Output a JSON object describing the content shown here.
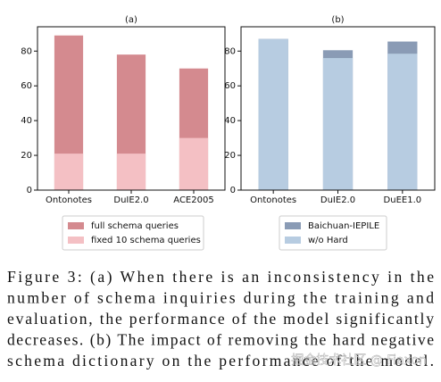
{
  "chart_data": [
    {
      "type": "bar",
      "title": "(a)",
      "categories": [
        "Ontonotes",
        "DuIE2.0",
        "ACE2005"
      ],
      "series": [
        {
          "name": "full schema queries",
          "color": "#d48a8f",
          "values": [
            89,
            78,
            70
          ]
        },
        {
          "name": "fixed 10 schema queries",
          "color": "#f4c0c4",
          "values": [
            21,
            21,
            30
          ]
        }
      ],
      "ylim": [
        0,
        94
      ],
      "yticks": [
        0,
        20,
        40,
        60,
        80
      ],
      "legend": "bottom"
    },
    {
      "type": "bar",
      "title": "(b)",
      "categories": [
        "Ontonotes",
        "DuIE2.0",
        "DuEE1.0"
      ],
      "series": [
        {
          "name": "Baichuan-IEPILE",
          "color": "#8a9bb5",
          "values": [
            87,
            80.5,
            85.5
          ]
        },
        {
          "name": "w/o Hard",
          "color": "#b7cce1",
          "values": [
            87,
            76,
            78.5
          ]
        }
      ],
      "ylim": [
        0,
        94
      ],
      "yticks": [
        0,
        20,
        40,
        60,
        80
      ],
      "legend": "bottom"
    }
  ],
  "caption_lines": [
    "Figure 3: (a) When there is an inconsistency in the",
    "number of schema inquiries during the training and",
    "evaluation, the performance of the model significantly",
    "decreases. (b) The impact of removing the hard negative",
    "schema dictionary on the performance of the model."
  ],
  "watermark": "掘金技术社区 @ Fiaxon"
}
